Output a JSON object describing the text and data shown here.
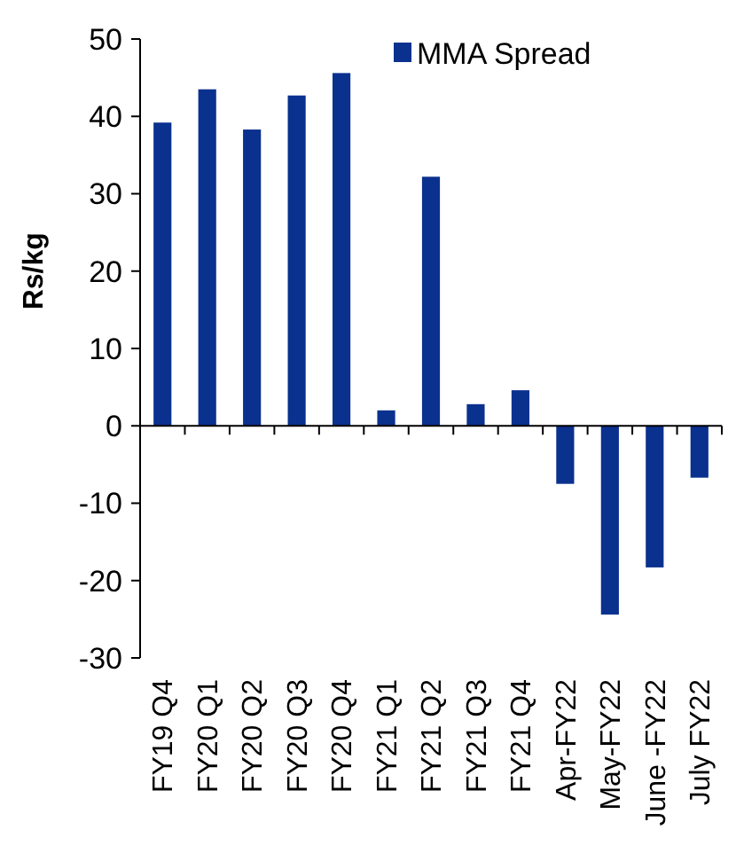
{
  "chart_data": {
    "type": "bar",
    "ylabel": "Rs/kg",
    "categories": [
      "FY19 Q4",
      "FY20 Q1",
      "FY20 Q2",
      "FY20 Q3",
      "FY20 Q4",
      "FY21 Q1",
      "FY21 Q2",
      "FY21 Q3",
      "FY21 Q4",
      "Apr-FY22",
      "May-FY22",
      "June -FY22",
      "July  FY22"
    ],
    "series": [
      {
        "name": "MMA Spread",
        "color": "#0b318f",
        "values": [
          39.2,
          43.5,
          38.3,
          42.7,
          45.6,
          2.0,
          32.2,
          2.8,
          4.6,
          -7.5,
          -24.4,
          -18.3,
          -6.7
        ]
      }
    ],
    "ylim": [
      -30,
      50
    ],
    "yticks": [
      -30,
      -20,
      -10,
      0,
      10,
      20,
      30,
      40,
      50
    ],
    "legend": "top right"
  }
}
